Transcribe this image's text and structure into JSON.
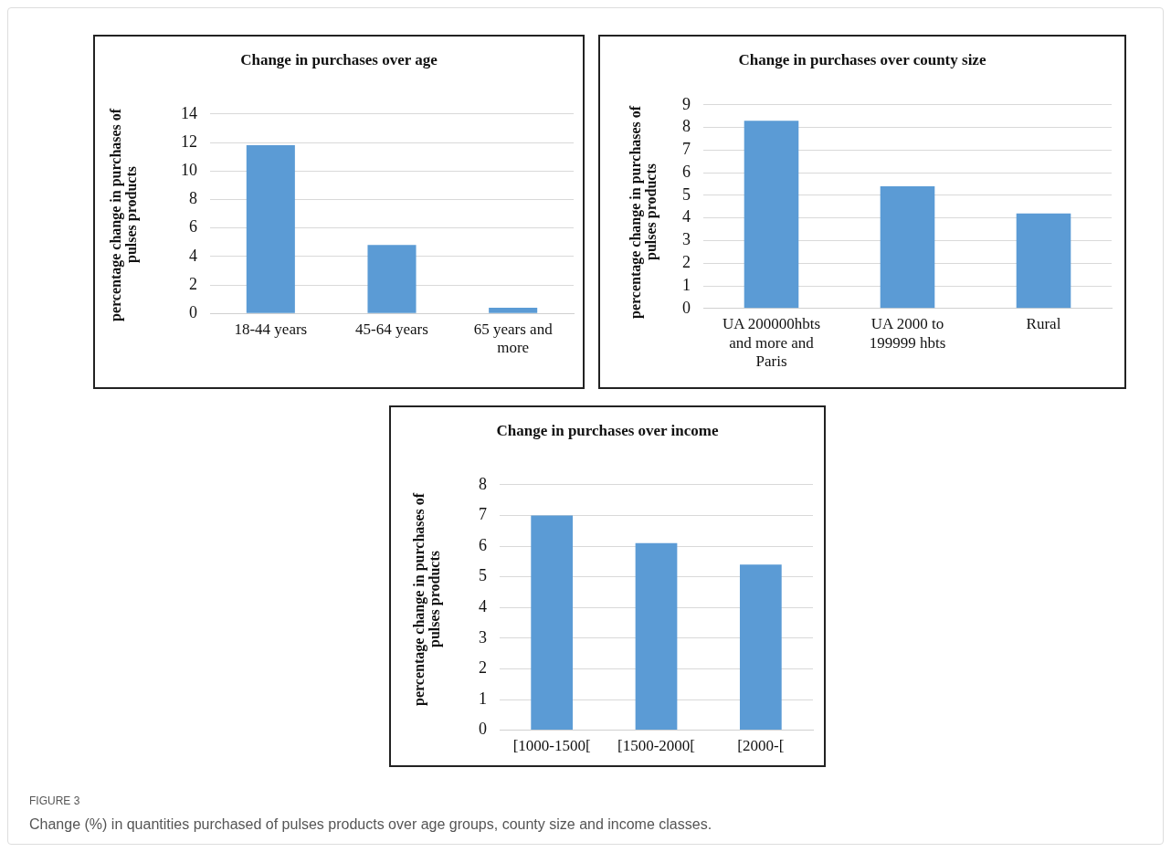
{
  "chart_data": [
    {
      "type": "bar",
      "title": "Change in purchases over age",
      "ylabel": "percentage change in purchases of pulses products",
      "categories": [
        "18-44 years",
        "45-64 years",
        "65 years and more"
      ],
      "values": [
        11.8,
        4.8,
        0.4
      ],
      "color": "#5b9bd5",
      "ylim": [
        0,
        14
      ],
      "yticks": [
        0,
        2,
        4,
        6,
        8,
        10,
        12,
        14
      ],
      "grid": "y",
      "legend": false
    },
    {
      "type": "bar",
      "title": "Change in purchases over county size",
      "ylabel": "percentage change in purchases of pulses products",
      "categories": [
        "UA 200000hbts and more and Paris",
        "UA 2000 to 199999 hbts",
        "Rural"
      ],
      "values": [
        8.3,
        5.4,
        4.2
      ],
      "color": "#5b9bd5",
      "ylim": [
        0,
        9
      ],
      "yticks": [
        0,
        1,
        2,
        3,
        4,
        5,
        6,
        7,
        8,
        9
      ],
      "grid": "y",
      "legend": false
    },
    {
      "type": "bar",
      "title": "Change in purchases over income",
      "ylabel": "percentage change in purchases of pulses products",
      "categories": [
        "[1000-1500[",
        "[1500-2000[",
        "[2000-["
      ],
      "values": [
        7.0,
        6.1,
        5.4
      ],
      "color": "#5b9bd5",
      "ylim": [
        0,
        8
      ],
      "yticks": [
        0,
        1,
        2,
        3,
        4,
        5,
        6,
        7,
        8
      ],
      "grid": "y",
      "legend": false,
      "annotations": [
        "FIGURE 3",
        "Change (%) in quantities purchased of pulses products over age groups, county size and income classes."
      ]
    }
  ]
}
